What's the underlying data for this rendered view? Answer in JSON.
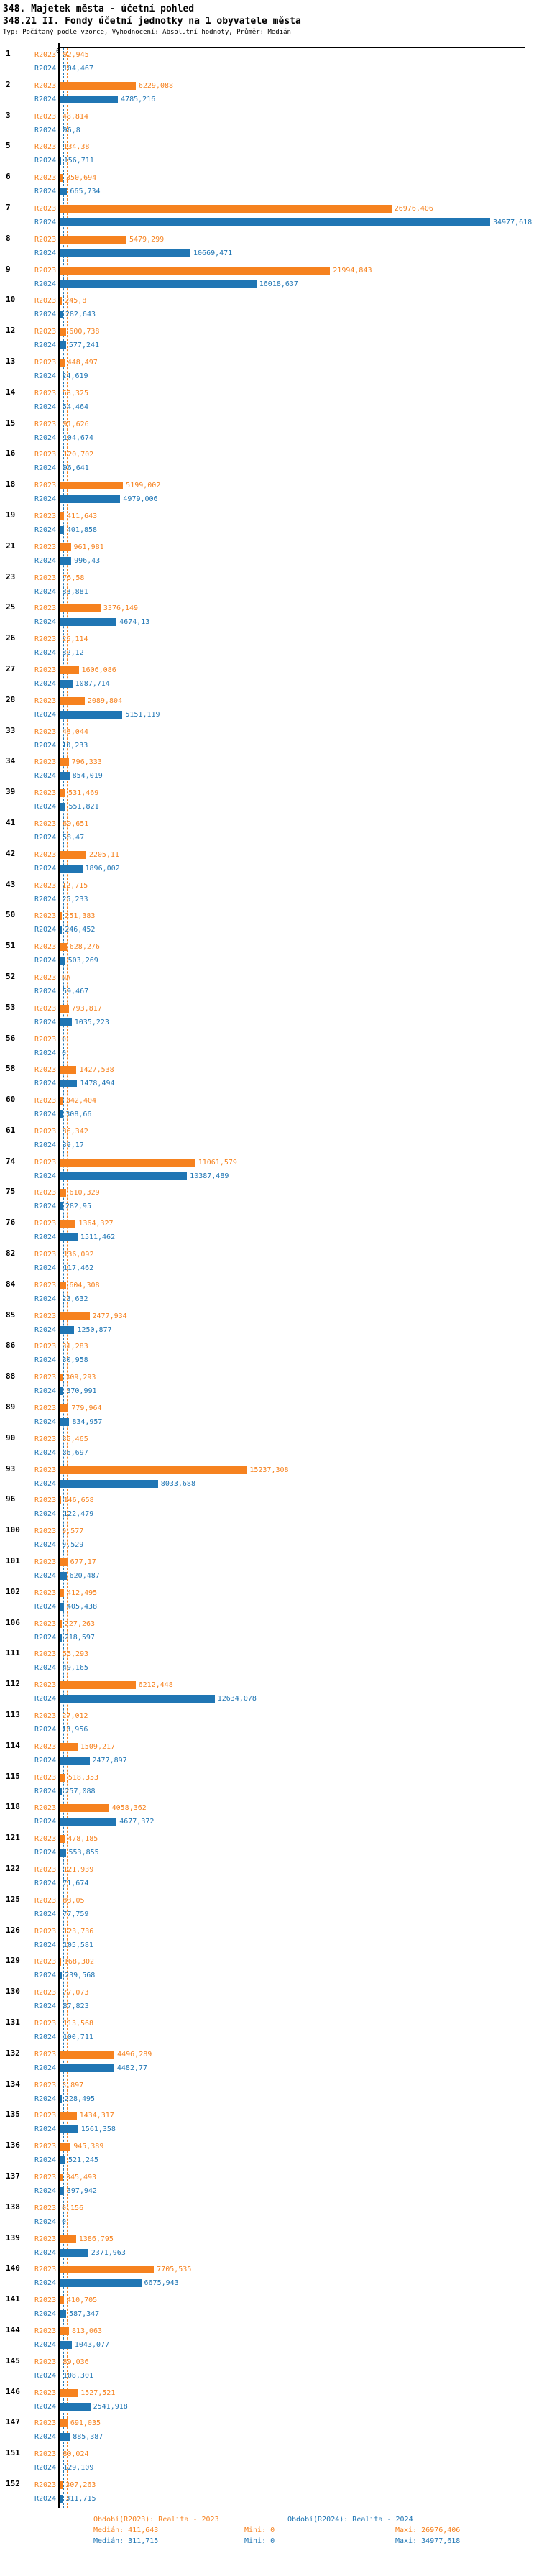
{
  "header": {
    "title": "348. Majetek města - účetní pohled",
    "subtitle": "348.21 II. Fondy účetní jednotky na 1 obyvatele města",
    "meta": "Typ: Počítaný podle vzorce, Vyhodnocení: Absolutní hodnoty, Průměr: Medián"
  },
  "footer": {
    "legend_2023": "Období(R2023): Realita - 2023",
    "legend_2024": "Období(R2024): Realita - 2024",
    "median_2023": "Medián: 411,643",
    "min_2023": "Mini: 0",
    "max_2023": "Maxi: 26976,406",
    "median_2024": "Medián: 311,715",
    "min_2024": "Mini: 0",
    "max_2024": "Maxi: 34977,618"
  },
  "chart_data": {
    "type": "bar",
    "orientation": "horizontal",
    "title": "348.21 II. Fondy účetní jednotky na 1 obyvatele města",
    "series_labels": [
      "R2023",
      "R2024"
    ],
    "colors": {
      "R2023": "#f6821f",
      "R2024": "#2076b4"
    },
    "axis": {
      "zero_label": "0",
      "xmax": 34977.618,
      "median_2023": 411.643,
      "median_2024": 311.715
    },
    "legend_position": "bottom",
    "rows": [
      {
        "n": "1",
        "v2023": "92,945",
        "v2024": "104,467"
      },
      {
        "n": "2",
        "v2023": "6229,088",
        "v2024": "4785,216"
      },
      {
        "n": "3",
        "v2023": "48,814",
        "v2024": "96,8"
      },
      {
        "n": "5",
        "v2023": "134,38",
        "v2024": "156,711"
      },
      {
        "n": "6",
        "v2023": "350,694",
        "v2024": "665,734"
      },
      {
        "n": "7",
        "v2023": "26976,406",
        "v2024": "34977,618"
      },
      {
        "n": "8",
        "v2023": "5479,299",
        "v2024": "10669,471"
      },
      {
        "n": "9",
        "v2023": "21994,843",
        "v2024": "16018,637"
      },
      {
        "n": "10",
        "v2023": "245,8",
        "v2024": "282,643"
      },
      {
        "n": "12",
        "v2023": "600,738",
        "v2024": "577,241"
      },
      {
        "n": "13",
        "v2023": "448,497",
        "v2024": "24,619"
      },
      {
        "n": "14",
        "v2023": "53,325",
        "v2024": "54,464"
      },
      {
        "n": "15",
        "v2023": "91,626",
        "v2024": "104,674"
      },
      {
        "n": "16",
        "v2023": "120,702",
        "v2024": "96,641"
      },
      {
        "n": "18",
        "v2023": "5199,002",
        "v2024": "4979,006"
      },
      {
        "n": "19",
        "v2023": "411,643",
        "v2024": "401,858"
      },
      {
        "n": "21",
        "v2023": "961,981",
        "v2024": "996,43"
      },
      {
        "n": "23",
        "v2023": "75,58",
        "v2024": "33,881"
      },
      {
        "n": "25",
        "v2023": "3376,149",
        "v2024": "4674,13"
      },
      {
        "n": "26",
        "v2023": "25,114",
        "v2024": "32,12"
      },
      {
        "n": "27",
        "v2023": "1606,086",
        "v2024": "1087,714"
      },
      {
        "n": "28",
        "v2023": "2089,804",
        "v2024": "5151,119"
      },
      {
        "n": "33",
        "v2023": "43,044",
        "v2024": "10,233"
      },
      {
        "n": "34",
        "v2023": "796,333",
        "v2024": "854,019"
      },
      {
        "n": "39",
        "v2023": "531,469",
        "v2024": "551,821"
      },
      {
        "n": "41",
        "v2023": "69,651",
        "v2024": "58,47"
      },
      {
        "n": "42",
        "v2023": "2205,11",
        "v2024": "1896,002"
      },
      {
        "n": "43",
        "v2023": "12,715",
        "v2024": "25,233"
      },
      {
        "n": "50",
        "v2023": "251,383",
        "v2024": "246,452"
      },
      {
        "n": "51",
        "v2023": "628,276",
        "v2024": "503,269"
      },
      {
        "n": "52",
        "v2023": "NA",
        "v2024": "59,467"
      },
      {
        "n": "53",
        "v2023": "793,817",
        "v2024": "1035,223"
      },
      {
        "n": "56",
        "v2023": "0",
        "v2024": "0"
      },
      {
        "n": "58",
        "v2023": "1427,538",
        "v2024": "1478,494"
      },
      {
        "n": "60",
        "v2023": "342,404",
        "v2024": "308,66"
      },
      {
        "n": "61",
        "v2023": "36,342",
        "v2024": "39,17"
      },
      {
        "n": "74",
        "v2023": "11061,579",
        "v2024": "10387,489"
      },
      {
        "n": "75",
        "v2023": "610,329",
        "v2024": "282,95"
      },
      {
        "n": "76",
        "v2023": "1364,327",
        "v2024": "1511,462"
      },
      {
        "n": "82",
        "v2023": "136,092",
        "v2024": "117,462"
      },
      {
        "n": "84",
        "v2023": "604,308",
        "v2024": "23,632"
      },
      {
        "n": "85",
        "v2023": "2477,934",
        "v2024": "1250,877"
      },
      {
        "n": "86",
        "v2023": "31,283",
        "v2024": "30,958"
      },
      {
        "n": "88",
        "v2023": "309,293",
        "v2024": "370,991"
      },
      {
        "n": "89",
        "v2023": "779,964",
        "v2024": "834,957"
      },
      {
        "n": "90",
        "v2023": "35,465",
        "v2024": "36,697"
      },
      {
        "n": "93",
        "v2023": "15237,308",
        "v2024": "8033,688"
      },
      {
        "n": "96",
        "v2023": "146,658",
        "v2024": "122,479"
      },
      {
        "n": "100",
        "v2023": "9,577",
        "v2024": "9,529"
      },
      {
        "n": "101",
        "v2023": "677,17",
        "v2024": "620,487"
      },
      {
        "n": "102",
        "v2023": "412,495",
        "v2024": "405,438"
      },
      {
        "n": "106",
        "v2023": "227,263",
        "v2024": "218,597"
      },
      {
        "n": "111",
        "v2023": "55,293",
        "v2024": "49,165"
      },
      {
        "n": "112",
        "v2023": "6212,448",
        "v2024": "12634,078"
      },
      {
        "n": "113",
        "v2023": "27,012",
        "v2024": "13,956"
      },
      {
        "n": "114",
        "v2023": "1509,217",
        "v2024": "2477,897"
      },
      {
        "n": "115",
        "v2023": "518,353",
        "v2024": "257,088"
      },
      {
        "n": "118",
        "v2023": "4058,362",
        "v2024": "4677,372"
      },
      {
        "n": "121",
        "v2023": "478,185",
        "v2024": "553,855"
      },
      {
        "n": "122",
        "v2023": "121,939",
        "v2024": "71,674"
      },
      {
        "n": "125",
        "v2023": "83,05",
        "v2024": "77,759"
      },
      {
        "n": "126",
        "v2023": "123,736",
        "v2024": "105,581"
      },
      {
        "n": "129",
        "v2023": "168,302",
        "v2024": "239,568"
      },
      {
        "n": "130",
        "v2023": "77,073",
        "v2024": "87,823"
      },
      {
        "n": "131",
        "v2023": "113,568",
        "v2024": "100,711"
      },
      {
        "n": "132",
        "v2023": "4496,289",
        "v2024": "4482,77"
      },
      {
        "n": "134",
        "v2023": "3,897",
        "v2024": "228,495"
      },
      {
        "n": "135",
        "v2023": "1434,317",
        "v2024": "1561,358"
      },
      {
        "n": "136",
        "v2023": "945,389",
        "v2024": "521,245"
      },
      {
        "n": "137",
        "v2023": "345,493",
        "v2024": "397,942"
      },
      {
        "n": "138",
        "v2023": "0,156",
        "v2024": "0"
      },
      {
        "n": "139",
        "v2023": "1386,795",
        "v2024": "2371,963"
      },
      {
        "n": "140",
        "v2023": "7705,535",
        "v2024": "6675,943"
      },
      {
        "n": "141",
        "v2023": "410,705",
        "v2024": "587,347"
      },
      {
        "n": "144",
        "v2023": "813,063",
        "v2024": "1043,077"
      },
      {
        "n": "145",
        "v2023": "89,036",
        "v2024": "108,301"
      },
      {
        "n": "146",
        "v2023": "1527,521",
        "v2024": "2541,918"
      },
      {
        "n": "147",
        "v2023": "691,035",
        "v2024": "885,387"
      },
      {
        "n": "151",
        "v2023": "80,024",
        "v2024": "129,109"
      },
      {
        "n": "152",
        "v2023": "307,263",
        "v2024": "311,715"
      }
    ]
  }
}
